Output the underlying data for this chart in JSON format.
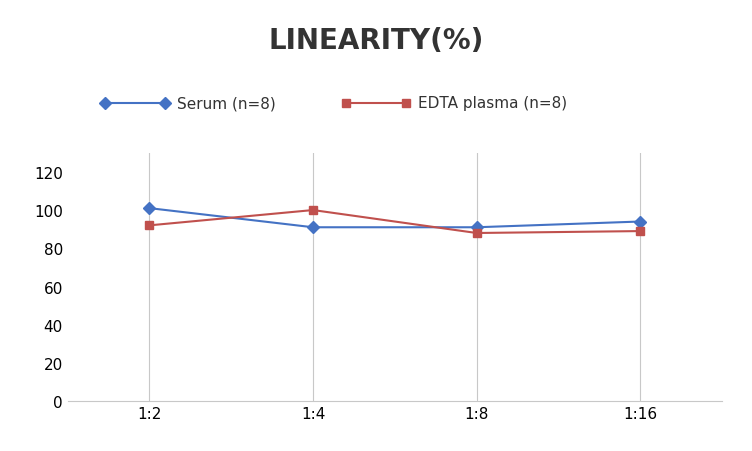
{
  "title": "LINEARITY(%)",
  "x_labels": [
    "1:2",
    "1:4",
    "1:8",
    "1:16"
  ],
  "x_values": [
    0,
    1,
    2,
    3
  ],
  "serum_values": [
    101,
    91,
    91,
    94
  ],
  "edta_values": [
    92,
    100,
    88,
    89
  ],
  "serum_label": "Serum (n=8)",
  "edta_label": "EDTA plasma (n=8)",
  "serum_color": "#4472C4",
  "edta_color": "#C0504D",
  "ylim": [
    0,
    130
  ],
  "yticks": [
    0,
    20,
    40,
    60,
    80,
    100,
    120
  ],
  "title_fontsize": 20,
  "legend_fontsize": 11,
  "tick_fontsize": 11,
  "background_color": "#FFFFFF",
  "grid_color": "#C8C8C8",
  "spine_color": "#C8C8C8"
}
